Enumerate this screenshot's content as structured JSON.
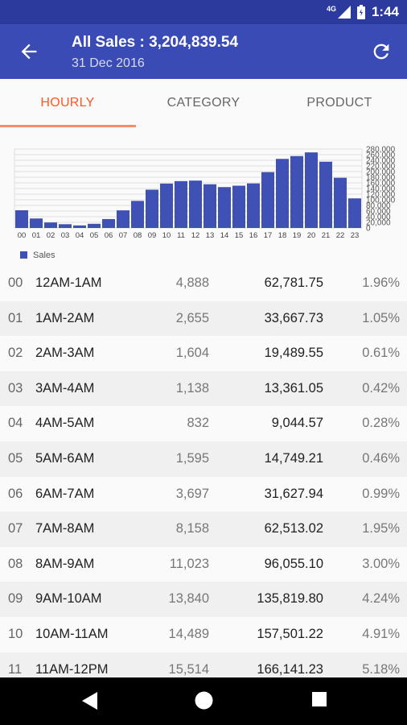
{
  "status": {
    "network": "4G",
    "time": "1:44"
  },
  "appbar": {
    "title": "All Sales : 3,204,839.54",
    "subtitle": "31 Dec 2016",
    "back_icon": "arrow-back-icon",
    "refresh_icon": "refresh-icon"
  },
  "tabs": [
    {
      "label": "HOURLY",
      "active": true
    },
    {
      "label": "CATEGORY",
      "active": false
    },
    {
      "label": "PRODUCT",
      "active": false
    }
  ],
  "chart_data": {
    "type": "bar",
    "categories": [
      "00",
      "01",
      "02",
      "03",
      "04",
      "05",
      "06",
      "07",
      "08",
      "09",
      "10",
      "11",
      "12",
      "13",
      "14",
      "15",
      "16",
      "17",
      "18",
      "19",
      "20",
      "21",
      "22",
      "23"
    ],
    "series": [
      {
        "name": "Sales",
        "values": [
          62782,
          33668,
          19490,
          13361,
          9045,
          14749,
          31628,
          62513,
          96055,
          135820,
          157501,
          166141,
          168000,
          155000,
          145000,
          150000,
          158000,
          198000,
          245000,
          255000,
          268000,
          235000,
          178000,
          105000
        ]
      }
    ],
    "yticks": [
      "280,000",
      "260,000",
      "240,000",
      "220,000",
      "200,000",
      "180,000",
      "160,000",
      "140,000",
      "120,000",
      "100,000",
      "80,000",
      "60,000",
      "40,000",
      "20,000",
      "0"
    ],
    "ylim": [
      0,
      280000
    ],
    "bar_color": "#3f51b5",
    "legend_position": "bottom-left"
  },
  "rows": [
    {
      "idx": "00",
      "range": "12AM-1AM",
      "count": "4,888",
      "amount": "62,781.75",
      "pct": "1.96%"
    },
    {
      "idx": "01",
      "range": "1AM-2AM",
      "count": "2,655",
      "amount": "33,667.73",
      "pct": "1.05%"
    },
    {
      "idx": "02",
      "range": "2AM-3AM",
      "count": "1,604",
      "amount": "19,489.55",
      "pct": "0.61%"
    },
    {
      "idx": "03",
      "range": "3AM-4AM",
      "count": "1,138",
      "amount": "13,361.05",
      "pct": "0.42%"
    },
    {
      "idx": "04",
      "range": "4AM-5AM",
      "count": "832",
      "amount": "9,044.57",
      "pct": "0.28%"
    },
    {
      "idx": "05",
      "range": "5AM-6AM",
      "count": "1,595",
      "amount": "14,749.21",
      "pct": "0.46%"
    },
    {
      "idx": "06",
      "range": "6AM-7AM",
      "count": "3,697",
      "amount": "31,627.94",
      "pct": "0.99%"
    },
    {
      "idx": "07",
      "range": "7AM-8AM",
      "count": "8,158",
      "amount": "62,513.02",
      "pct": "1.95%"
    },
    {
      "idx": "08",
      "range": "8AM-9AM",
      "count": "11,023",
      "amount": "96,055.10",
      "pct": "3.00%"
    },
    {
      "idx": "09",
      "range": "9AM-10AM",
      "count": "13,840",
      "amount": "135,819.80",
      "pct": "4.24%"
    },
    {
      "idx": "10",
      "range": "10AM-11AM",
      "count": "14,489",
      "amount": "157,501.22",
      "pct": "4.91%"
    },
    {
      "idx": "11",
      "range": "11AM-12PM",
      "count": "15,514",
      "amount": "166,141.23",
      "pct": "5.18%"
    }
  ]
}
